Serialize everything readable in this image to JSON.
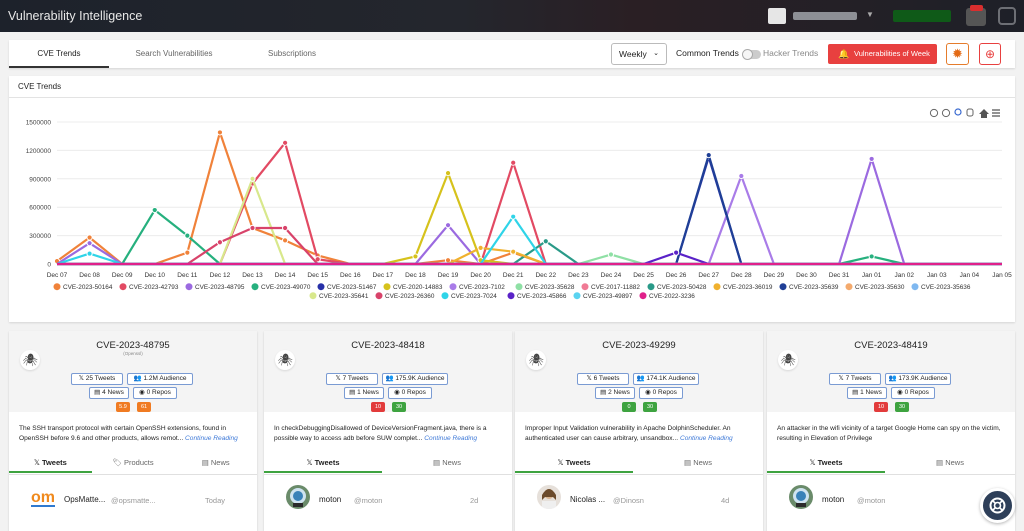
{
  "app": {
    "title": "Vulnerability Intelligence"
  },
  "nav": {
    "tabs": [
      {
        "label": "CVE Trends",
        "active": true
      },
      {
        "label": "Search Vulnerabilities",
        "active": false
      },
      {
        "label": "Subscriptions",
        "active": false
      }
    ],
    "period_select": "Weekly",
    "common_trends_label": "Common Trends",
    "hacker_trends_label": "Hacker Trends",
    "vulns_week_button": "Vulnerabilities of Week"
  },
  "chart_panel": {
    "title": "CVE Trends"
  },
  "chart_data": {
    "type": "line",
    "title": "CVE Trends",
    "ylim": [
      0,
      1500000
    ],
    "yticks": [
      "0",
      "300000",
      "600000",
      "900000",
      "1200000",
      "1500000"
    ],
    "categories": [
      "Dec 07",
      "Dec 08",
      "Dec 09",
      "Dec 10",
      "Dec 11",
      "Dec 12",
      "Dec 13",
      "Dec 14",
      "Dec 15",
      "Dec 16",
      "Dec 17",
      "Dec 18",
      "Dec 19",
      "Dec 20",
      "Dec 21",
      "Dec 22",
      "Dec 23",
      "Dec 24",
      "Dec 25",
      "Dec 26",
      "Dec 27",
      "Dec 28",
      "Dec 29",
      "Dec 30",
      "Dec 31",
      "Jan 01",
      "Jan 02",
      "Jan 03",
      "Jan 04",
      "Jan 05"
    ],
    "legend_position": "bottom",
    "series": [
      {
        "name": "CVE-2023-50164",
        "color": "#f0823a",
        "values": [
          30000,
          280000,
          0,
          0,
          120000,
          1390000,
          380000,
          250000,
          90000,
          0,
          0,
          0,
          40000,
          0,
          120000,
          0,
          0,
          0,
          0,
          0,
          0,
          0,
          0,
          0,
          0,
          0,
          0,
          0,
          0,
          0
        ]
      },
      {
        "name": "CVE-2023-42793",
        "color": "#e24a63",
        "values": [
          0,
          0,
          0,
          0,
          0,
          0,
          850000,
          1280000,
          50000,
          0,
          0,
          0,
          0,
          0,
          1070000,
          0,
          0,
          0,
          0,
          0,
          0,
          0,
          0,
          0,
          0,
          0,
          0,
          0,
          0,
          0
        ]
      },
      {
        "name": "CVE-2023-48795",
        "color": "#9b6ae0",
        "values": [
          0,
          220000,
          0,
          0,
          0,
          0,
          0,
          0,
          0,
          0,
          0,
          0,
          410000,
          0,
          0,
          0,
          0,
          0,
          0,
          0,
          0,
          0,
          0,
          0,
          0,
          1110000,
          0,
          0,
          0,
          0
        ]
      },
      {
        "name": "CVE-2023-49070",
        "color": "#26b07e",
        "values": [
          0,
          0,
          0,
          570000,
          300000,
          0,
          0,
          0,
          0,
          0,
          0,
          0,
          0,
          0,
          0,
          0,
          0,
          0,
          0,
          0,
          0,
          0,
          0,
          0,
          0,
          80000,
          0,
          0,
          0,
          0
        ]
      },
      {
        "name": "CVE-2023-51467",
        "color": "#2730a8",
        "values": [
          0,
          0,
          0,
          0,
          0,
          0,
          0,
          0,
          0,
          0,
          0,
          0,
          0,
          0,
          0,
          0,
          0,
          0,
          0,
          0,
          1130000,
          0,
          0,
          0,
          0,
          0,
          0,
          0,
          0,
          0
        ]
      },
      {
        "name": "CVE-2020-14883",
        "color": "#d6c21c",
        "values": [
          0,
          0,
          0,
          0,
          0,
          0,
          0,
          0,
          0,
          0,
          0,
          80000,
          960000,
          40000,
          0,
          0,
          0,
          0,
          0,
          0,
          0,
          0,
          0,
          0,
          0,
          0,
          0,
          0,
          0,
          0
        ]
      },
      {
        "name": "CVE-2023-7102",
        "color": "#a97ce8",
        "values": [
          0,
          0,
          0,
          0,
          0,
          0,
          0,
          0,
          0,
          0,
          0,
          0,
          0,
          0,
          0,
          0,
          0,
          0,
          0,
          0,
          0,
          930000,
          0,
          0,
          0,
          0,
          0,
          0,
          0,
          0
        ]
      },
      {
        "name": "CVE-2023-35628",
        "color": "#8fe0a5",
        "values": [
          0,
          0,
          0,
          0,
          0,
          0,
          0,
          0,
          0,
          0,
          0,
          0,
          0,
          0,
          0,
          0,
          0,
          100000,
          0,
          0,
          0,
          0,
          0,
          0,
          0,
          0,
          0,
          0,
          0,
          0
        ]
      },
      {
        "name": "CVE-2017-11882",
        "color": "#f07a95",
        "values": [
          0,
          0,
          0,
          0,
          0,
          0,
          0,
          0,
          0,
          0,
          0,
          0,
          0,
          0,
          0,
          0,
          0,
          0,
          0,
          0,
          0,
          0,
          0,
          0,
          0,
          0,
          0,
          0,
          0,
          0
        ]
      },
      {
        "name": "CVE-2023-50428",
        "color": "#2a9a88",
        "values": [
          0,
          0,
          0,
          0,
          0,
          0,
          0,
          0,
          0,
          0,
          0,
          0,
          0,
          0,
          0,
          240000,
          0,
          0,
          0,
          0,
          0,
          0,
          0,
          0,
          0,
          0,
          0,
          0,
          0,
          0
        ]
      },
      {
        "name": "CVE-2023-36019",
        "color": "#f0b12e",
        "values": [
          0,
          0,
          0,
          0,
          0,
          0,
          0,
          0,
          0,
          0,
          0,
          0,
          0,
          170000,
          130000,
          0,
          0,
          0,
          0,
          0,
          0,
          0,
          0,
          0,
          0,
          0,
          0,
          0,
          0,
          0
        ]
      },
      {
        "name": "CVE-2023-35639",
        "color": "#1f3f96",
        "values": [
          0,
          0,
          0,
          0,
          0,
          0,
          0,
          0,
          0,
          0,
          0,
          0,
          0,
          0,
          0,
          0,
          0,
          0,
          0,
          0,
          1150000,
          0,
          0,
          0,
          0,
          0,
          0,
          0,
          0,
          0
        ]
      },
      {
        "name": "CVE-2023-35630",
        "color": "#f4aa6d",
        "values": [
          0,
          0,
          0,
          0,
          0,
          0,
          0,
          0,
          0,
          0,
          0,
          0,
          0,
          0,
          0,
          0,
          0,
          0,
          0,
          0,
          0,
          0,
          0,
          0,
          0,
          0,
          0,
          0,
          0,
          0
        ]
      },
      {
        "name": "CVE-2023-35636",
        "color": "#7fb8f0",
        "values": [
          0,
          0,
          0,
          0,
          0,
          0,
          0,
          0,
          0,
          0,
          0,
          0,
          0,
          0,
          0,
          0,
          0,
          0,
          0,
          0,
          0,
          0,
          0,
          0,
          0,
          0,
          0,
          0,
          0,
          0
        ]
      },
      {
        "name": "CVE-2023-35641",
        "color": "#d8e88c",
        "values": [
          0,
          0,
          0,
          0,
          0,
          0,
          900000,
          0,
          0,
          0,
          0,
          0,
          0,
          0,
          0,
          0,
          0,
          0,
          0,
          0,
          0,
          0,
          0,
          0,
          0,
          0,
          0,
          0,
          0,
          0
        ]
      },
      {
        "name": "CVE-2023-26360",
        "color": "#d8436a",
        "values": [
          0,
          0,
          0,
          0,
          0,
          230000,
          380000,
          380000,
          0,
          0,
          0,
          0,
          0,
          0,
          0,
          0,
          0,
          0,
          0,
          0,
          0,
          0,
          0,
          0,
          0,
          0,
          0,
          0,
          0,
          0
        ]
      },
      {
        "name": "CVE-2023-7024",
        "color": "#2fd4e8",
        "values": [
          0,
          110000,
          0,
          0,
          0,
          0,
          0,
          0,
          0,
          0,
          0,
          0,
          0,
          0,
          500000,
          0,
          0,
          0,
          0,
          0,
          0,
          0,
          0,
          0,
          0,
          0,
          0,
          0,
          0,
          0
        ]
      },
      {
        "name": "CVE-2023-45866",
        "color": "#5a22c8",
        "values": [
          0,
          0,
          0,
          0,
          0,
          0,
          0,
          0,
          0,
          0,
          0,
          0,
          0,
          0,
          0,
          0,
          0,
          0,
          0,
          120000,
          0,
          0,
          0,
          0,
          0,
          0,
          0,
          0,
          0,
          0
        ]
      },
      {
        "name": "CVE-2023-49897",
        "color": "#5ad3f0",
        "values": [
          0,
          0,
          0,
          0,
          0,
          0,
          0,
          0,
          0,
          0,
          0,
          0,
          0,
          0,
          0,
          0,
          0,
          0,
          0,
          0,
          0,
          0,
          0,
          0,
          0,
          0,
          0,
          0,
          0,
          0
        ]
      },
      {
        "name": "CVE-2022-3236",
        "color": "#e0208a",
        "values": [
          0,
          0,
          0,
          0,
          0,
          0,
          0,
          0,
          0,
          0,
          0,
          0,
          0,
          0,
          0,
          0,
          0,
          0,
          0,
          0,
          0,
          0,
          0,
          0,
          0,
          0,
          0,
          0,
          0,
          0
        ]
      }
    ]
  },
  "cards": [
    {
      "cve": "CVE-2023-48795",
      "subtitle": "(Openssl)",
      "tweets": "25 Tweets",
      "audience": "1.2M Audience",
      "news": "4 News",
      "repos": "0 Repos",
      "score1": "5.9",
      "score2": "61",
      "score_colors": [
        "#f07b22",
        "#f07b22"
      ],
      "description": "The SSH transport protocol with certain OpenSSH extensions, found in OpenSSH before 9.6 and other products, allows remot...",
      "continue": "Continue Reading",
      "tabs": [
        "Tweets",
        "Products",
        "News"
      ],
      "tweet": {
        "name": "OpsMatte...",
        "handle": "@opsmatte...",
        "time": "Today",
        "avatar": "om"
      }
    },
    {
      "cve": "CVE-2023-48418",
      "subtitle": "",
      "tweets": "7 Tweets",
      "audience": "175.9K Audience",
      "news": "1 News",
      "repos": "0 Repos",
      "score1": "10",
      "score2": "30",
      "score_colors": [
        "#e23b3b",
        "#3ea340"
      ],
      "description": "In checkDebuggingDisallowed of DeviceVersionFragment.java, there is a possible way to access adb before SUW complet...",
      "continue": "Continue Reading",
      "tabs": [
        "Tweets",
        "News"
      ],
      "tweet": {
        "name": "moton",
        "handle": "@moton",
        "time": "2d",
        "avatar": "moton"
      }
    },
    {
      "cve": "CVE-2023-49299",
      "subtitle": "",
      "tweets": "6 Tweets",
      "audience": "174.1K Audience",
      "news": "2 News",
      "repos": "0 Repos",
      "score1": "0",
      "score2": "30",
      "score_colors": [
        "#3ea340",
        "#3ea340"
      ],
      "description": "Improper Input Validation vulnerability in Apache DolphinScheduler. An authenticated user can cause arbitrary, unsandbox...",
      "continue": "Continue Reading",
      "tabs": [
        "Tweets",
        "News"
      ],
      "tweet": {
        "name": "Nicolas ...",
        "handle": "@Dinosn",
        "time": "4d",
        "avatar": "person"
      }
    },
    {
      "cve": "CVE-2023-48419",
      "subtitle": "",
      "tweets": "7 Tweets",
      "audience": "173.9K Audience",
      "news": "1 News",
      "repos": "0 Repos",
      "score1": "10",
      "score2": "30",
      "score_colors": [
        "#e23b3b",
        "#3ea340"
      ],
      "description": "An attacker in the wifi vicinity of a target Google Home can spy on the victim, resulting in Elevation of Privilege",
      "continue": "",
      "tabs": [
        "Tweets",
        "News"
      ],
      "tweet": {
        "name": "moton",
        "handle": "@moton",
        "time": "",
        "avatar": "moton"
      }
    }
  ]
}
